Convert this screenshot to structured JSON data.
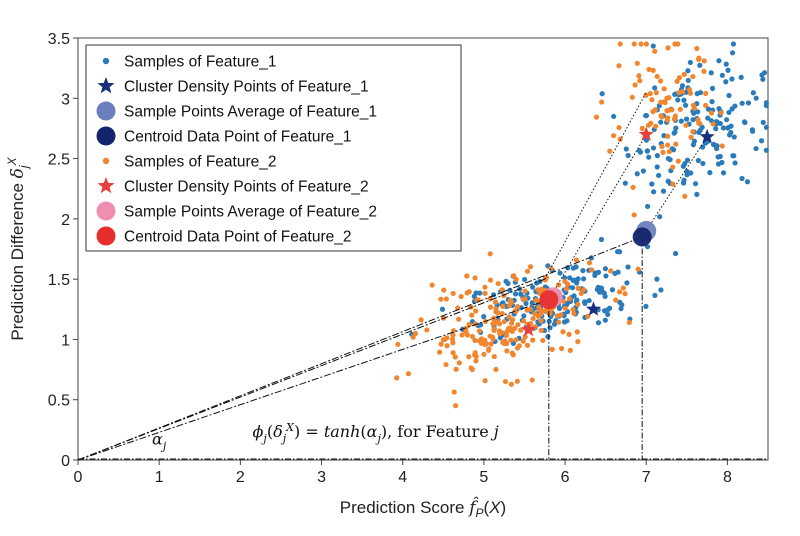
{
  "colors": {
    "feature1": "#2b7bba",
    "feature1_density": "#1a2f7a",
    "feature1_average": "#6b7fbf",
    "feature1_centroid": "#13246b",
    "feature2": "#f2862f",
    "feature2_density": "#e8403d",
    "feature2_average": "#ee8fb1",
    "feature2_centroid": "#e62e2e",
    "guide": "#111111"
  },
  "chart_data": {
    "type": "scatter",
    "xlabel": "Prediction Score f̂P(X)",
    "ylabel": "Prediction Difference δjX",
    "xlim": [
      0,
      8.5
    ],
    "ylim": [
      0,
      3.5
    ],
    "xticks": [
      0,
      1,
      2,
      3,
      4,
      5,
      6,
      7,
      8
    ],
    "yticks": [
      0,
      0.5,
      1,
      1.5,
      2,
      2.5,
      3,
      3.5
    ],
    "ytick_labels": [
      "0",
      "0.5",
      "1",
      "1.5",
      "2",
      "2.5",
      "3",
      "3.5"
    ],
    "grid": false,
    "legend_position": "top-left",
    "legend": [
      "Samples of Feature_1",
      "Cluster Density Points of Feature_1",
      "Sample Points Average of Feature_1",
      "Centroid Data Point of Feature_1",
      "Samples of Feature_2",
      "Cluster Density Points of Feature_2",
      "Sample Points Average of Feature_2",
      "Centroid Data Point of Feature_2"
    ],
    "series": [
      {
        "name": "Samples of Feature_1",
        "marker": "dot",
        "clusters": [
          {
            "center": [
              5.9,
              1.33
            ],
            "spread": [
              0.55,
              0.14
            ],
            "count": 190
          },
          {
            "center": [
              7.6,
              2.75
            ],
            "spread": [
              0.42,
              0.28
            ],
            "count": 170
          }
        ]
      },
      {
        "name": "Cluster Density Points of Feature_1",
        "marker": "star",
        "points": [
          [
            6.35,
            1.25
          ],
          [
            7.75,
            2.68
          ]
        ]
      },
      {
        "name": "Sample Points Average of Feature_1",
        "marker": "circle",
        "points": [
          [
            7.0,
            1.9
          ]
        ]
      },
      {
        "name": "Centroid Data Point of Feature_1",
        "marker": "circle",
        "points": [
          [
            6.95,
            1.85
          ]
        ]
      },
      {
        "name": "Samples of Feature_2",
        "marker": "dot",
        "clusters": [
          {
            "center": [
              5.3,
              1.15
            ],
            "spread": [
              0.55,
              0.2
            ],
            "count": 220
          },
          {
            "center": [
              7.2,
              2.85
            ],
            "spread": [
              0.35,
              0.3
            ],
            "count": 90
          }
        ]
      },
      {
        "name": "Cluster Density Points of Feature_2",
        "marker": "star",
        "points": [
          [
            5.55,
            1.08
          ],
          [
            7.0,
            2.7
          ]
        ]
      },
      {
        "name": "Sample Points Average of Feature_2",
        "marker": "circle",
        "points": [
          [
            5.85,
            1.35
          ]
        ]
      },
      {
        "name": "Centroid Data Point of Feature_2",
        "marker": "circle",
        "points": [
          [
            5.8,
            1.33
          ]
        ]
      }
    ],
    "guides": {
      "rays_from_origin_to": [
        [
          5.8,
          1.33
        ],
        [
          5.75,
          1.5
        ],
        [
          6.95,
          1.85
        ]
      ],
      "links": [
        [
          [
            5.8,
            1.33
          ],
          [
            7.0,
            2.7
          ]
        ],
        [
          [
            5.75,
            1.5
          ],
          [
            7.0,
            3.05
          ]
        ],
        [
          [
            6.95,
            1.85
          ],
          [
            7.75,
            2.68
          ]
        ]
      ],
      "drops_to_x_axis": [
        [
          5.8,
          1.33
        ],
        [
          6.95,
          1.85
        ]
      ]
    },
    "annotations": [
      {
        "text": "αj",
        "at": [
          1.0,
          0.13
        ]
      },
      {
        "text": "ϕj(δjX) = tanh(αj), for Feature j",
        "at": [
          2.15,
          0.19
        ]
      }
    ]
  }
}
